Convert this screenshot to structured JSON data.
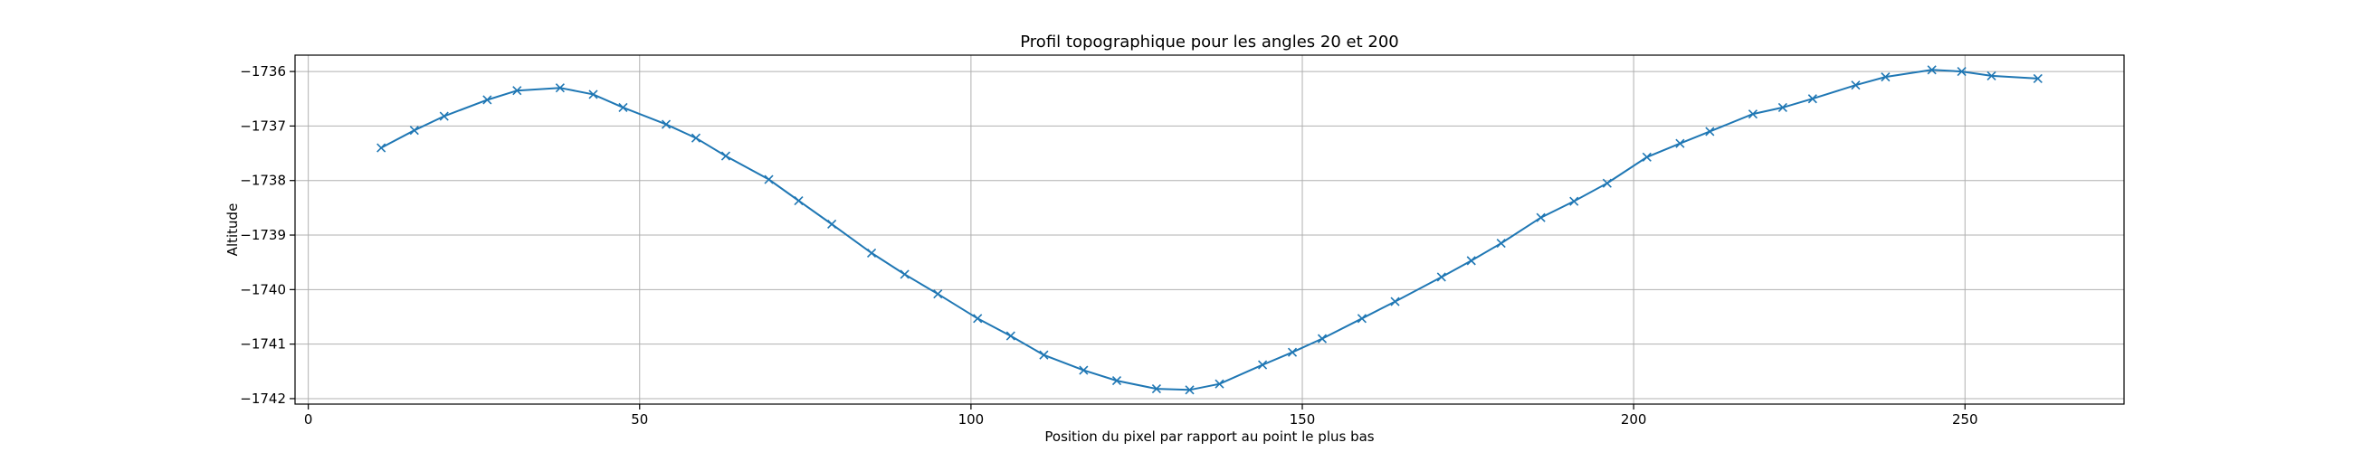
{
  "chart_data": {
    "type": "line",
    "title": "Profil topographique pour les angles 20 et 200",
    "xlabel": "Position du pixel par rapport au point le plus bas",
    "ylabel": "Altitude",
    "xlim": [
      -2,
      274
    ],
    "ylim": [
      -1742.1,
      -1735.7
    ],
    "xticks": [
      0,
      50,
      100,
      150,
      200,
      250
    ],
    "yticks": [
      -1742,
      -1741,
      -1740,
      -1739,
      -1738,
      -1737,
      -1736
    ],
    "xtick_labels": [
      "0",
      "50",
      "100",
      "150",
      "200",
      "250"
    ],
    "ytick_labels": [
      "−1742",
      "−1741",
      "−1740",
      "−1739",
      "−1738",
      "−1737",
      "−1736"
    ],
    "grid": true,
    "marker": "x",
    "line_color": "#1f77b4",
    "series": [
      {
        "x": [
          11,
          16,
          20.5,
          27,
          31.5,
          38,
          43,
          47.5,
          54,
          58.5,
          63,
          69.5,
          74,
          79,
          85,
          90,
          95,
          101,
          106,
          111,
          117,
          122,
          128,
          133,
          137.5,
          144,
          148.5,
          153,
          159,
          164,
          171,
          175.5,
          180,
          186,
          191,
          196,
          202,
          207,
          211.5,
          218,
          222.5,
          227,
          233.5,
          238,
          245,
          249.5,
          254,
          261
        ],
        "y": [
          -1737.4,
          -1737.08,
          -1736.82,
          -1736.52,
          -1736.35,
          -1736.3,
          -1736.42,
          -1736.66,
          -1736.97,
          -1737.22,
          -1737.55,
          -1737.98,
          -1738.37,
          -1738.8,
          -1739.33,
          -1739.72,
          -1740.08,
          -1740.53,
          -1740.85,
          -1741.2,
          -1741.48,
          -1741.67,
          -1741.82,
          -1741.84,
          -1741.73,
          -1741.38,
          -1741.15,
          -1740.9,
          -1740.53,
          -1740.22,
          -1739.77,
          -1739.47,
          -1739.15,
          -1738.68,
          -1738.38,
          -1738.05,
          -1737.57,
          -1737.32,
          -1737.1,
          -1736.78,
          -1736.66,
          -1736.5,
          -1736.25,
          -1736.1,
          -1735.97,
          -1736.0,
          -1736.08,
          -1736.13
        ]
      }
    ]
  }
}
